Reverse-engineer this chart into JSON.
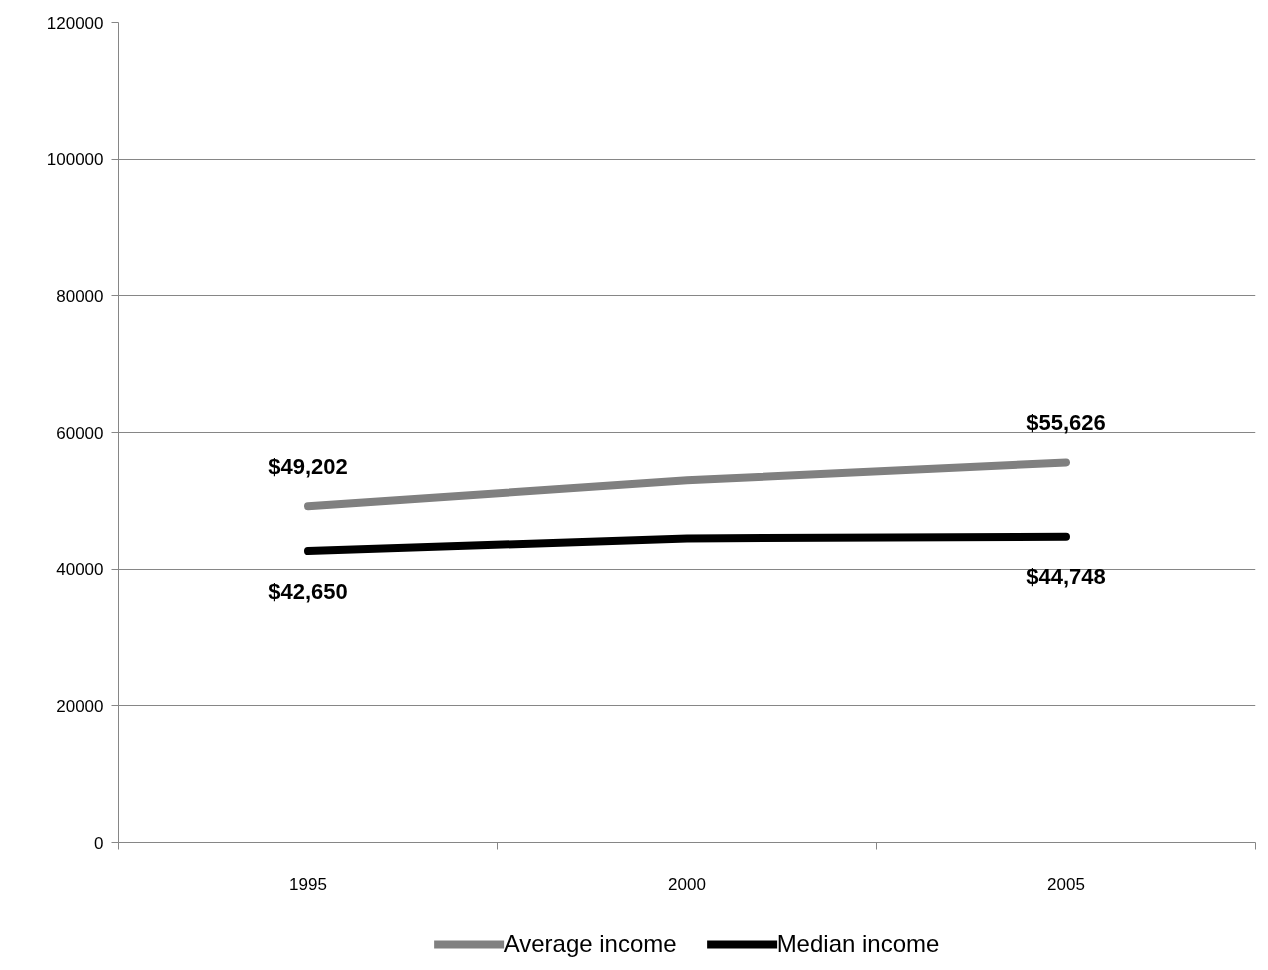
{
  "chart_data": {
    "type": "line",
    "categories": [
      "1995",
      "2000",
      "2005"
    ],
    "series": [
      {
        "name": "Average income",
        "color": "#808080",
        "values": [
          49202,
          53000,
          55626
        ],
        "value_labels": [
          "$49,202",
          null,
          "$55,626"
        ]
      },
      {
        "name": "Median income",
        "color": "#000000",
        "values": [
          42650,
          44500,
          44748
        ],
        "value_labels": [
          "$42,650",
          null,
          "$44,748"
        ]
      }
    ],
    "ylim": [
      0,
      120000
    ],
    "yticks": [
      0,
      20000,
      40000,
      60000,
      80000,
      100000,
      120000
    ],
    "grid": "y",
    "legend": "bottom",
    "line_style": "solid"
  }
}
